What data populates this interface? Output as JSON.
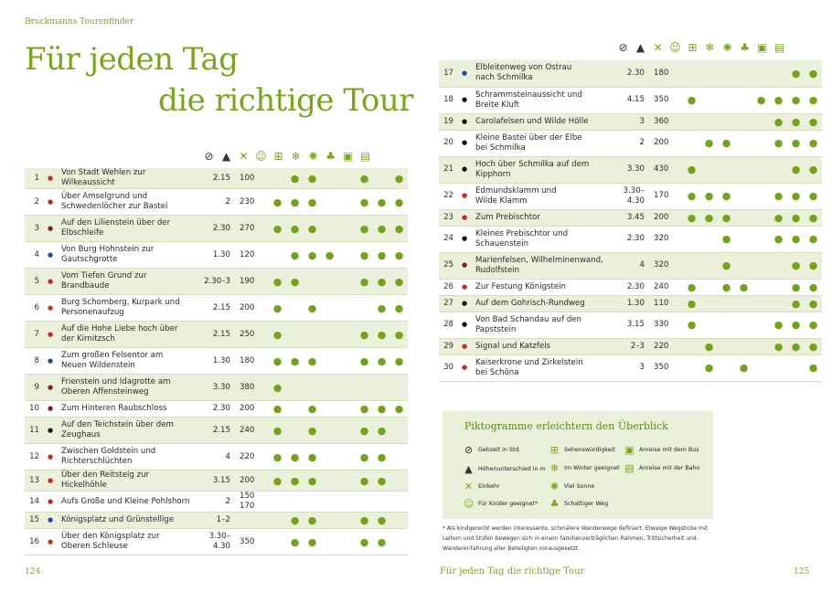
{
  "running_head": "Bruckmanns Tourenfinder",
  "title_line1": "Für jeden Tag",
  "title_line2": "die richtige Tour",
  "icon_header": [
    {
      "icon": "clock-icon",
      "glyph": "⊘"
    },
    {
      "icon": "mountain-icon",
      "glyph": "▲"
    },
    {
      "icon": "food-icon",
      "glyph": "✕"
    },
    {
      "icon": "child-smiley-icon",
      "glyph": "☺"
    },
    {
      "icon": "monument-icon",
      "glyph": "⊞"
    },
    {
      "icon": "snowflake-icon",
      "glyph": "❄"
    },
    {
      "icon": "sun-icon",
      "glyph": "✺"
    },
    {
      "icon": "shade-tree-icon",
      "glyph": "♣"
    },
    {
      "icon": "bus-icon",
      "glyph": "▣"
    },
    {
      "icon": "train-icon",
      "glyph": "▤"
    }
  ],
  "dot_glyph": "●",
  "marker_colors": {
    "red": "#c62828",
    "blue": "#2746a0",
    "black": "#111111",
    "maroon": "#7a1f1f"
  },
  "left_tours": [
    {
      "num": "1",
      "marker": "red",
      "name": [
        "Von Stadt Wehlen zur Wilkeaussicht"
      ],
      "time": "2.15",
      "elev": "100",
      "pics": [
        0,
        1,
        1,
        0,
        0,
        1,
        0,
        1
      ]
    },
    {
      "num": "2",
      "marker": "red",
      "name": [
        "Über Amselgrund und",
        "Schwedenlöcher zur Bastei"
      ],
      "time": "2",
      "elev": "230",
      "pics": [
        1,
        1,
        1,
        0,
        0,
        1,
        1,
        1
      ]
    },
    {
      "num": "3",
      "marker": "maroon",
      "name": [
        "Auf den Lilienstein über der",
        "Elbschleife"
      ],
      "time": "2.30",
      "elev": "270",
      "pics": [
        1,
        1,
        1,
        0,
        0,
        1,
        1,
        1
      ]
    },
    {
      "num": "4",
      "marker": "blue",
      "name": [
        "Von Burg Hohnstein zur",
        "Gautschgrotte"
      ],
      "time": "1.30",
      "elev": "120",
      "pics": [
        0,
        1,
        1,
        1,
        0,
        1,
        1,
        1
      ]
    },
    {
      "num": "5",
      "marker": "red",
      "name": [
        "Vom Tiefen Grund zur",
        "Brandbaude"
      ],
      "time": "2.30–3",
      "elev": "190",
      "pics": [
        1,
        1,
        0,
        0,
        0,
        1,
        1,
        1
      ]
    },
    {
      "num": "6",
      "marker": "red",
      "name": [
        "Burg Schomberg, Kurpark und",
        "Personenaufzug"
      ],
      "time": "2.15",
      "elev": "200",
      "pics": [
        1,
        0,
        1,
        0,
        0,
        0,
        1,
        1
      ]
    },
    {
      "num": "7",
      "marker": "red",
      "name": [
        "Auf die Hohe Liebe hoch über",
        "der Kirnitzsch"
      ],
      "time": "2.15",
      "elev": "250",
      "pics": [
        1,
        0,
        0,
        0,
        0,
        1,
        1,
        1
      ]
    },
    {
      "num": "8",
      "marker": "blue",
      "name": [
        "Zum großen Felsentor am",
        "Neuen Wildenstein"
      ],
      "time": "1.30",
      "elev": "180",
      "pics": [
        1,
        1,
        1,
        0,
        0,
        1,
        1,
        1
      ]
    },
    {
      "num": "9",
      "marker": "maroon",
      "name": [
        "Frienstein und Idagrotte am",
        "Oberen Affensteinweg"
      ],
      "time": "3.30",
      "elev": "380",
      "pics": [
        1,
        0,
        0,
        0,
        0,
        0,
        0,
        0
      ]
    },
    {
      "num": "10",
      "marker": "maroon",
      "name": [
        "Zum Hinteren Raubschloss"
      ],
      "time": "2.30",
      "elev": "200",
      "pics": [
        1,
        0,
        1,
        0,
        0,
        1,
        1,
        1
      ]
    },
    {
      "num": "11",
      "marker": "black",
      "name": [
        "Auf den Teichstein über dem",
        "Zeughaus"
      ],
      "time": "2.15",
      "elev": "240",
      "pics": [
        1,
        0,
        1,
        0,
        0,
        1,
        1,
        0
      ]
    },
    {
      "num": "12",
      "marker": "red",
      "name": [
        "Zwischen Goldstein und",
        "Richterschlüchten"
      ],
      "time": "4",
      "elev": "220",
      "pics": [
        1,
        1,
        1,
        0,
        0,
        1,
        1,
        0
      ]
    },
    {
      "num": "13",
      "marker": "red",
      "name": [
        "Über den Reitsteig zur Hickelhöhle"
      ],
      "time": "3.15",
      "elev": "200",
      "pics": [
        1,
        1,
        1,
        0,
        0,
        1,
        1,
        0
      ]
    },
    {
      "num": "14",
      "marker": "red",
      "name": [
        "Aufs Große und Kleine Pohlshorn"
      ],
      "time": "2",
      "elev": [
        "150",
        "170"
      ],
      "pics": [
        0,
        0,
        0,
        0,
        0,
        0,
        0,
        0
      ]
    },
    {
      "num": "15",
      "marker": "blue",
      "name": [
        "Königsplatz und Grünstellige"
      ],
      "time": "1–2",
      "elev": "",
      "pics": [
        0,
        1,
        1,
        0,
        0,
        1,
        1,
        0
      ]
    },
    {
      "num": "16",
      "marker": "red",
      "name": [
        "Über den Königsplatz zur",
        "Oberen Schleuse"
      ],
      "time": "3.30–4.30",
      "elev": "350",
      "pics": [
        0,
        1,
        1,
        0,
        0,
        1,
        1,
        0
      ]
    }
  ],
  "right_tours": [
    {
      "num": "17",
      "marker": "blue",
      "name": [
        "Elbleitenweg von Ostrau",
        "nach Schmilka"
      ],
      "time": "2.30",
      "elev": "180",
      "pics": [
        0,
        0,
        0,
        0,
        0,
        0,
        1,
        1
      ]
    },
    {
      "num": "18",
      "marker": "black",
      "name": [
        "Schrammsteinaussicht und",
        "Breite Kluft"
      ],
      "time": "4.15",
      "elev": "350",
      "pics": [
        1,
        0,
        0,
        0,
        1,
        1,
        1,
        1
      ]
    },
    {
      "num": "19",
      "marker": "black",
      "name": [
        "Carolafelsen und Wilde Hölle"
      ],
      "time": "3",
      "elev": "360",
      "pics": [
        0,
        0,
        0,
        0,
        0,
        1,
        1,
        1
      ]
    },
    {
      "num": "20",
      "marker": "black",
      "name": [
        "Kleine Bastei über der Elbe",
        "bei Schmilka"
      ],
      "time": "2",
      "elev": "200",
      "pics": [
        0,
        1,
        1,
        0,
        0,
        1,
        1,
        1
      ]
    },
    {
      "num": "21",
      "marker": "black",
      "name": [
        "Hoch über Schmilka auf dem",
        "Kipphorn"
      ],
      "time": "3.30",
      "elev": "430",
      "pics": [
        1,
        0,
        0,
        0,
        0,
        0,
        1,
        1
      ]
    },
    {
      "num": "22",
      "marker": "red",
      "name": [
        "Edmundsklamm und",
        "Wilde Klamm"
      ],
      "time": "3.30–4.30",
      "elev": "170",
      "pics": [
        1,
        1,
        1,
        0,
        0,
        1,
        1,
        1
      ]
    },
    {
      "num": "23",
      "marker": "red",
      "name": [
        "Zum Prebischtor"
      ],
      "time": "3.45",
      "elev": "200",
      "pics": [
        1,
        1,
        1,
        0,
        0,
        1,
        1,
        1
      ]
    },
    {
      "num": "24",
      "marker": "black",
      "name": [
        "Kleines Prebischtor und",
        "Schauenstein"
      ],
      "time": "2.30",
      "elev": "320",
      "pics": [
        0,
        0,
        1,
        0,
        0,
        1,
        1,
        1
      ]
    },
    {
      "num": "25",
      "marker": "maroon",
      "name": [
        "Marienfelsen, Wilhelminenwand,",
        "Rudolfstein"
      ],
      "time": "4",
      "elev": "320",
      "pics": [
        0,
        0,
        1,
        0,
        0,
        0,
        1,
        1
      ]
    },
    {
      "num": "26",
      "marker": "red",
      "name": [
        "Zur Festung Königstein"
      ],
      "time": "2.30",
      "elev": "240",
      "pics": [
        1,
        0,
        1,
        1,
        0,
        0,
        1,
        1
      ]
    },
    {
      "num": "27",
      "marker": "black",
      "name": [
        "Auf dem Gohrisch-Rundweg"
      ],
      "time": "1.30",
      "elev": "110",
      "pics": [
        1,
        0,
        0,
        0,
        0,
        0,
        1,
        1
      ]
    },
    {
      "num": "28",
      "marker": "black",
      "name": [
        "Von Bad Schandau auf den",
        "Papststein"
      ],
      "time": "3.15",
      "elev": "330",
      "pics": [
        1,
        0,
        0,
        0,
        0,
        1,
        1,
        1
      ]
    },
    {
      "num": "29",
      "marker": "red",
      "name": [
        "Signal und Katzfels"
      ],
      "time": "2–3",
      "elev": "220",
      "pics": [
        0,
        1,
        0,
        0,
        0,
        1,
        1,
        1
      ]
    },
    {
      "num": "30",
      "marker": "red",
      "name": [
        "Kaiserkrone und Zirkelstein",
        "bei Schöna"
      ],
      "time": "3",
      "elev": "350",
      "pics": [
        0,
        1,
        0,
        1,
        0,
        0,
        0,
        1
      ]
    }
  ],
  "legend": {
    "title": "Piktogramme erleichtern den Überblick",
    "items": [
      {
        "icon": "clock-icon",
        "glyph": "⊘",
        "label": "Gehzeit in Std."
      },
      {
        "icon": "mountain-icon",
        "glyph": "▲",
        "label": "Höhenunterschied in m"
      },
      {
        "icon": "food-icon",
        "glyph": "✕",
        "label": "Einkehr"
      },
      {
        "icon": "child-smiley-icon",
        "glyph": "☺",
        "label": "Für Kinder geeignet*"
      },
      {
        "icon": "monument-icon",
        "glyph": "⊞",
        "label": "Sehenswürdigkeit"
      },
      {
        "icon": "snowflake-icon",
        "glyph": "❄",
        "label": "Im Winter geeignet"
      },
      {
        "icon": "sun-icon",
        "glyph": "✺",
        "label": "Viel Sonne"
      },
      {
        "icon": "shade-tree-icon",
        "glyph": "♣",
        "label": "Schattiger Weg"
      },
      {
        "icon": "bus-icon",
        "glyph": "▣",
        "label": "Anreise mit dem Bus"
      },
      {
        "icon": "train-icon",
        "glyph": "▤",
        "label": "Anreise mit der Bahn"
      }
    ]
  },
  "footnote": "* Als kindgerecht werden interessante, schmälere Wanderwege definiert. Etwaige Wegsticke mit Leitern und Stufen bewegen sich in einem familienverträglichen Rahmen, Trittsicherheit und Wanderer-fahrung aller Beteiligten vorausgesetzt.",
  "page_left": "124",
  "page_right": "125",
  "footer_center": "Für jeden Tag die richtige Tour"
}
